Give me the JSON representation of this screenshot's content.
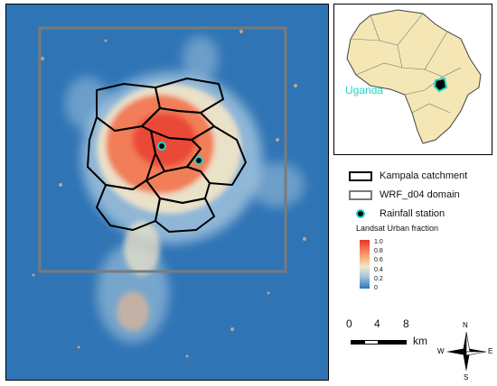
{
  "inset": {
    "country_label": "Uganda"
  },
  "legend": {
    "items": [
      {
        "label": "Kampala catchment",
        "symbol": "black-outline-box",
        "color": "#000000"
      },
      {
        "label": "WRF_d04 domain",
        "symbol": "grey-outline-box",
        "color": "#7a7a7a"
      },
      {
        "label": "Rainfall station",
        "symbol": "teal-ring-dot",
        "color": "#1fd6c4"
      }
    ],
    "colorbar_title": "Landsat Urban fraction",
    "colorbar_ticks": [
      "1.0",
      "0.8",
      "0.6",
      "0.4",
      "0.2",
      "0"
    ],
    "colorbar_colors": [
      "#e8342c",
      "#f6b98a",
      "#f4e6c8",
      "#2f74b5"
    ]
  },
  "scale": {
    "ticks": [
      "0",
      "4",
      "8"
    ],
    "unit": "km"
  },
  "compass": {
    "n": "N",
    "s": "S",
    "e": "E",
    "w": "W"
  },
  "colors": {
    "background_water_low": "#2f74b5",
    "urban_high": "#e8342c",
    "domain_box": "#7a7a7a",
    "africa_fill": "#f5e6b5",
    "uganda_highlight": "#1fd6c4"
  }
}
